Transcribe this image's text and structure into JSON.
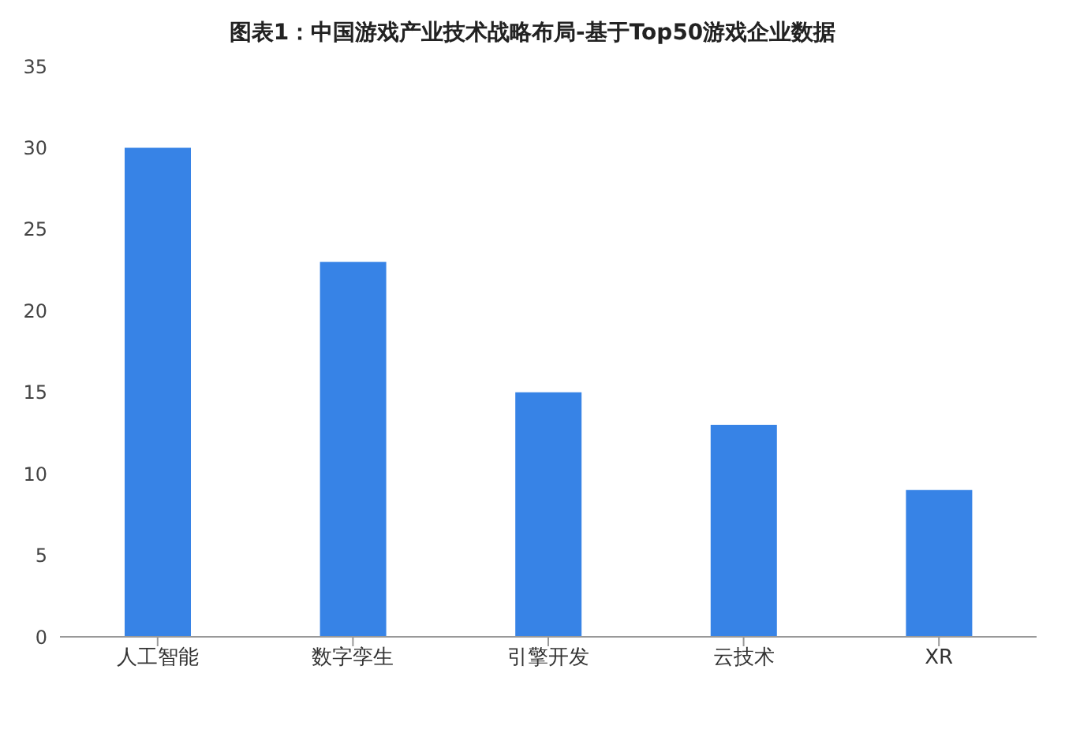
{
  "chart_data": {
    "type": "bar",
    "title": "图表1：中国游戏产业技术战略布局-基于Top50游戏企业数据",
    "categories": [
      "人工智能",
      "数字孪生",
      "引擎开发",
      "云技术",
      "XR"
    ],
    "values": [
      30,
      23,
      15,
      13,
      9
    ],
    "color": "#3783e6",
    "ylim": [
      0,
      35
    ],
    "yticks": [
      0,
      5,
      10,
      15,
      20,
      25,
      30,
      35
    ],
    "grid": false
  }
}
